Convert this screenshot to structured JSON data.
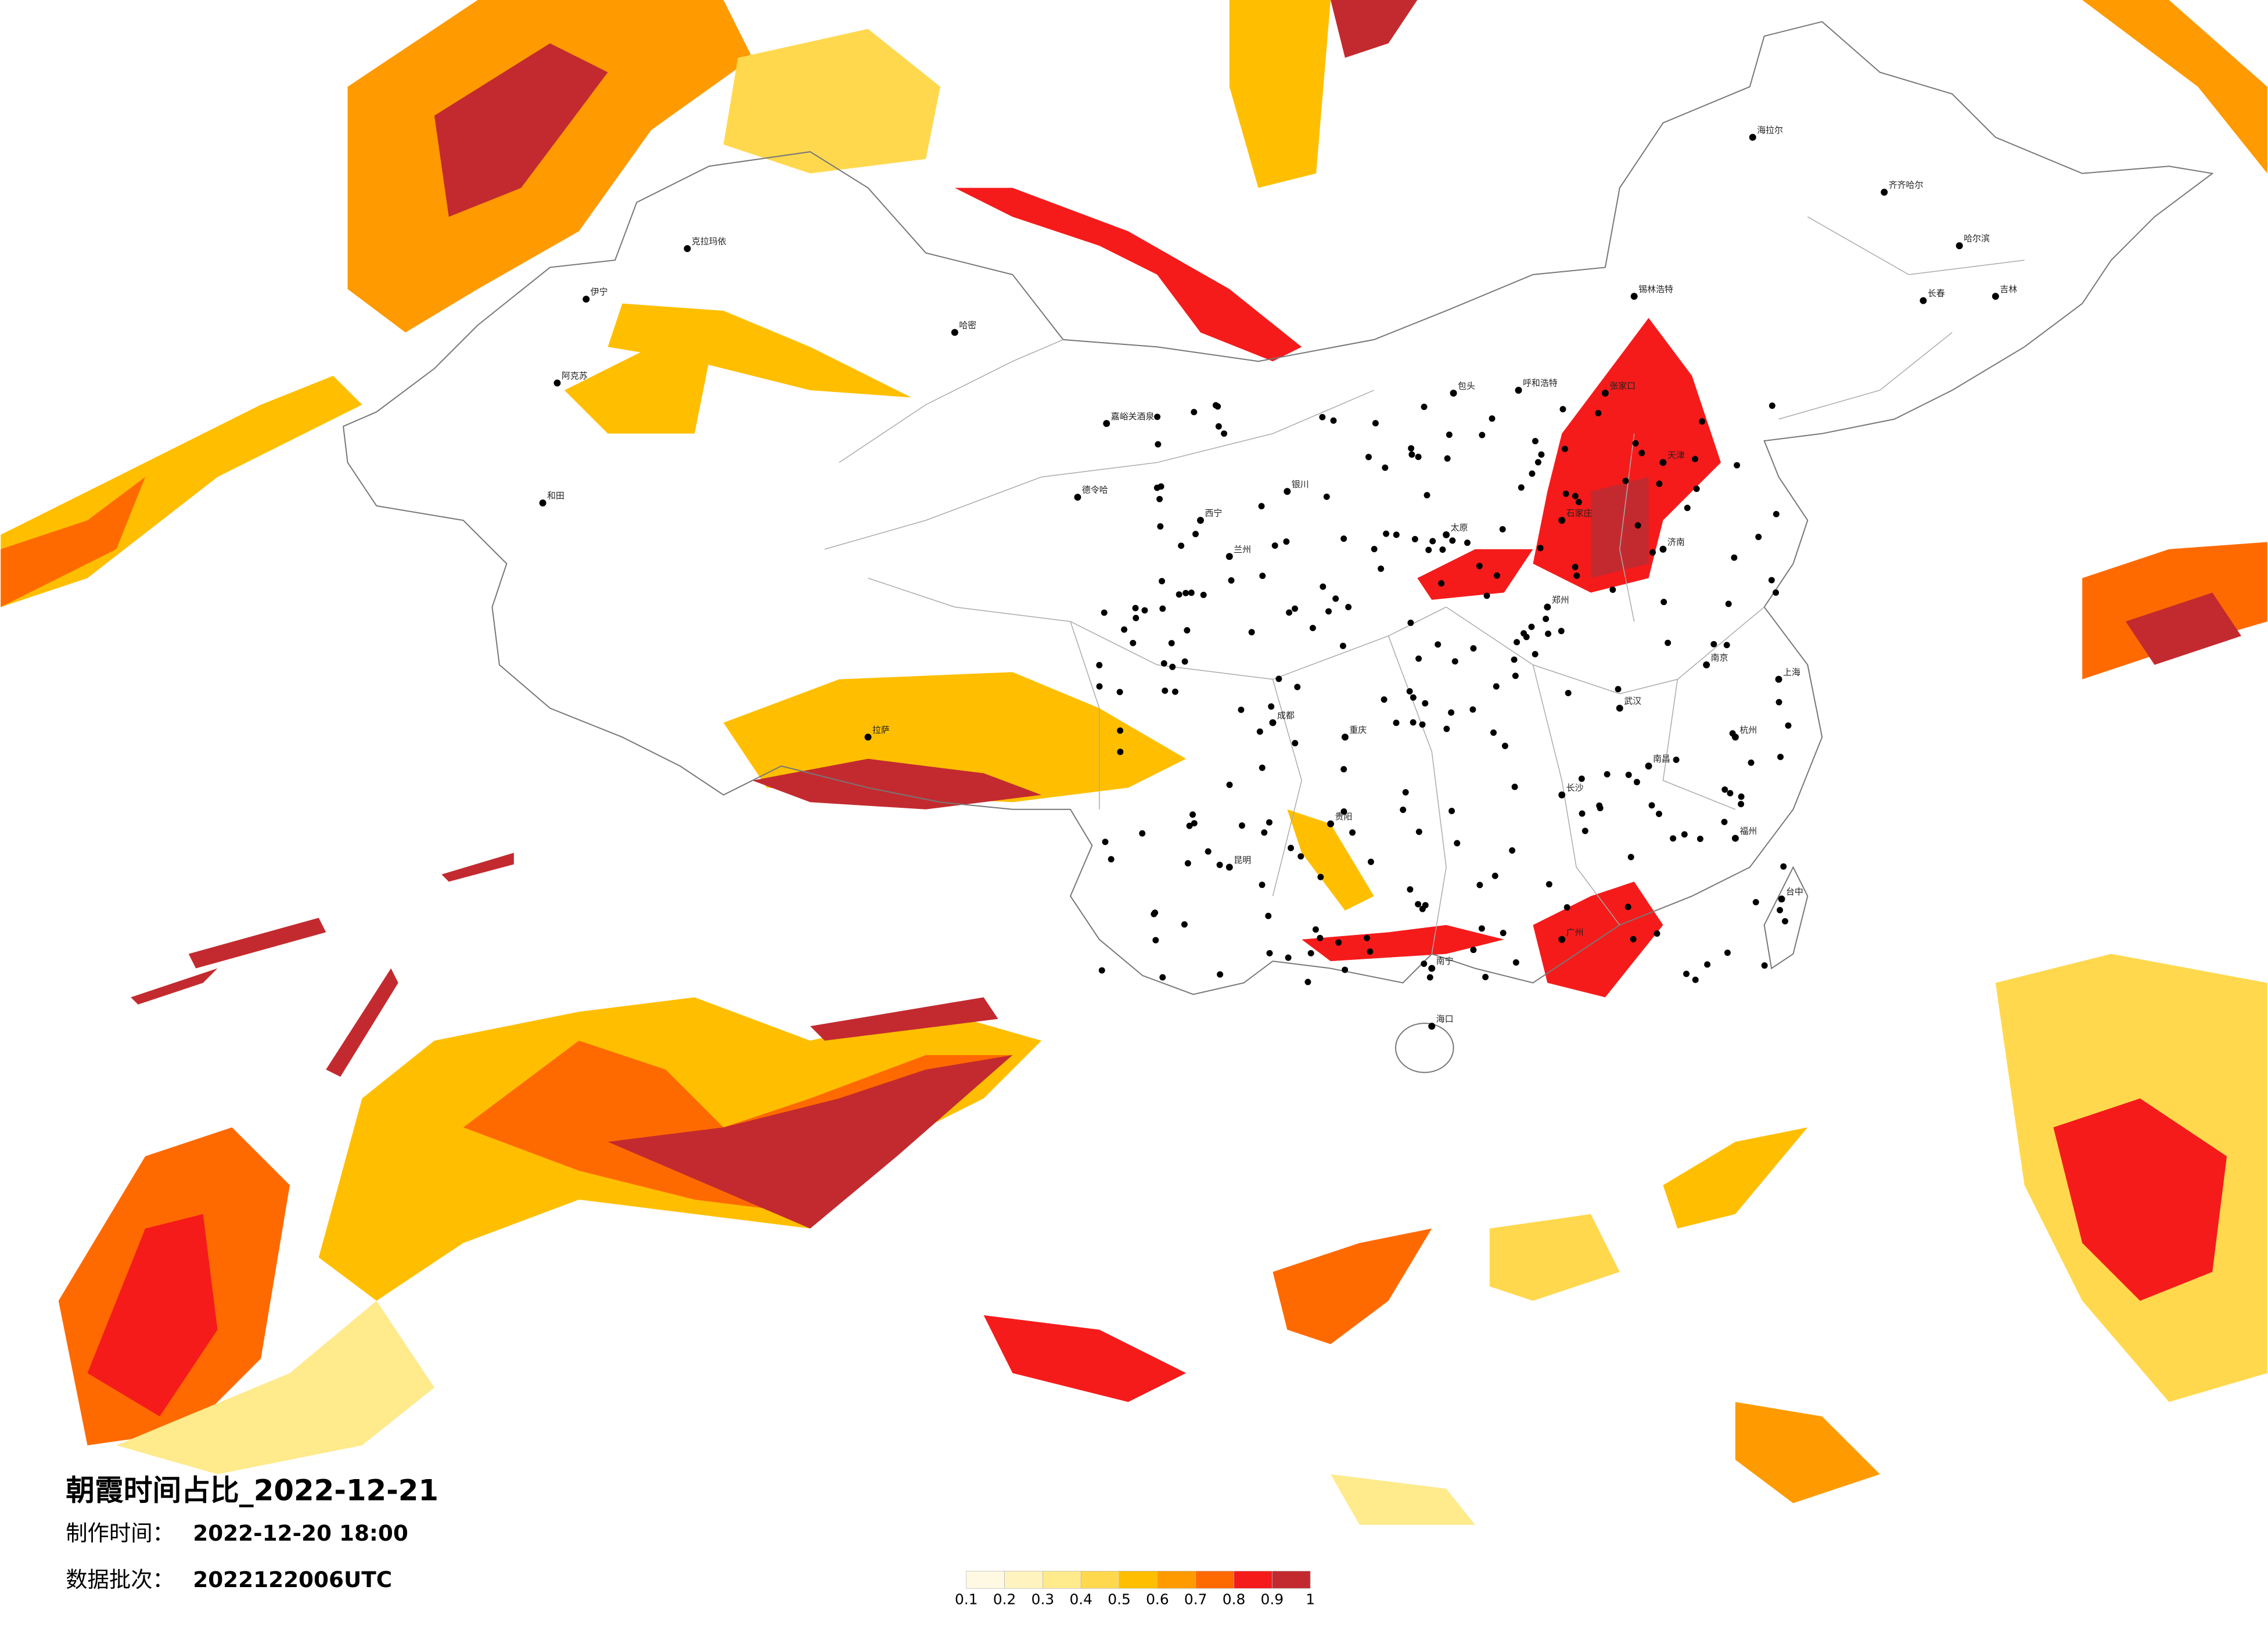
{
  "title": "朝霞时间占比_2022-12-21",
  "production_time": {
    "label": "制作时间：",
    "value": "2022-12-20 18:00"
  },
  "data_batch": {
    "label": "数据批次：",
    "value": "2022122006UTC"
  },
  "legend": {
    "colors": [
      "#fff9e3",
      "#fff3bf",
      "#ffea8c",
      "#ffd84d",
      "#ffbf00",
      "#ff9a00",
      "#ff6a00",
      "#f51b1b",
      "#c32a2f"
    ],
    "ticks": [
      0.1,
      0.2,
      0.3,
      0.4,
      0.5,
      0.6,
      0.7,
      0.8,
      0.9,
      1
    ]
  },
  "cities": [
    "海拉尔",
    "齐齐哈尔",
    "哈尔滨",
    "长春",
    "吉林",
    "克拉玛依",
    "伊宁",
    "阿克苏",
    "和田",
    "哈密",
    "嘉峪关酒泉",
    "德令哈",
    "呼和浩特",
    "包头",
    "张家口",
    "西宁",
    "兰州",
    "银川",
    "太原",
    "郑州",
    "武汉",
    "长沙",
    "南昌",
    "福州",
    "广州",
    "南宁",
    "昆明",
    "贵阳",
    "成都",
    "重庆",
    "拉萨",
    "海口",
    "台中",
    "杭州",
    "南京",
    "上海",
    "济南",
    "石家庄",
    "天津",
    "锡林浩特"
  ]
}
